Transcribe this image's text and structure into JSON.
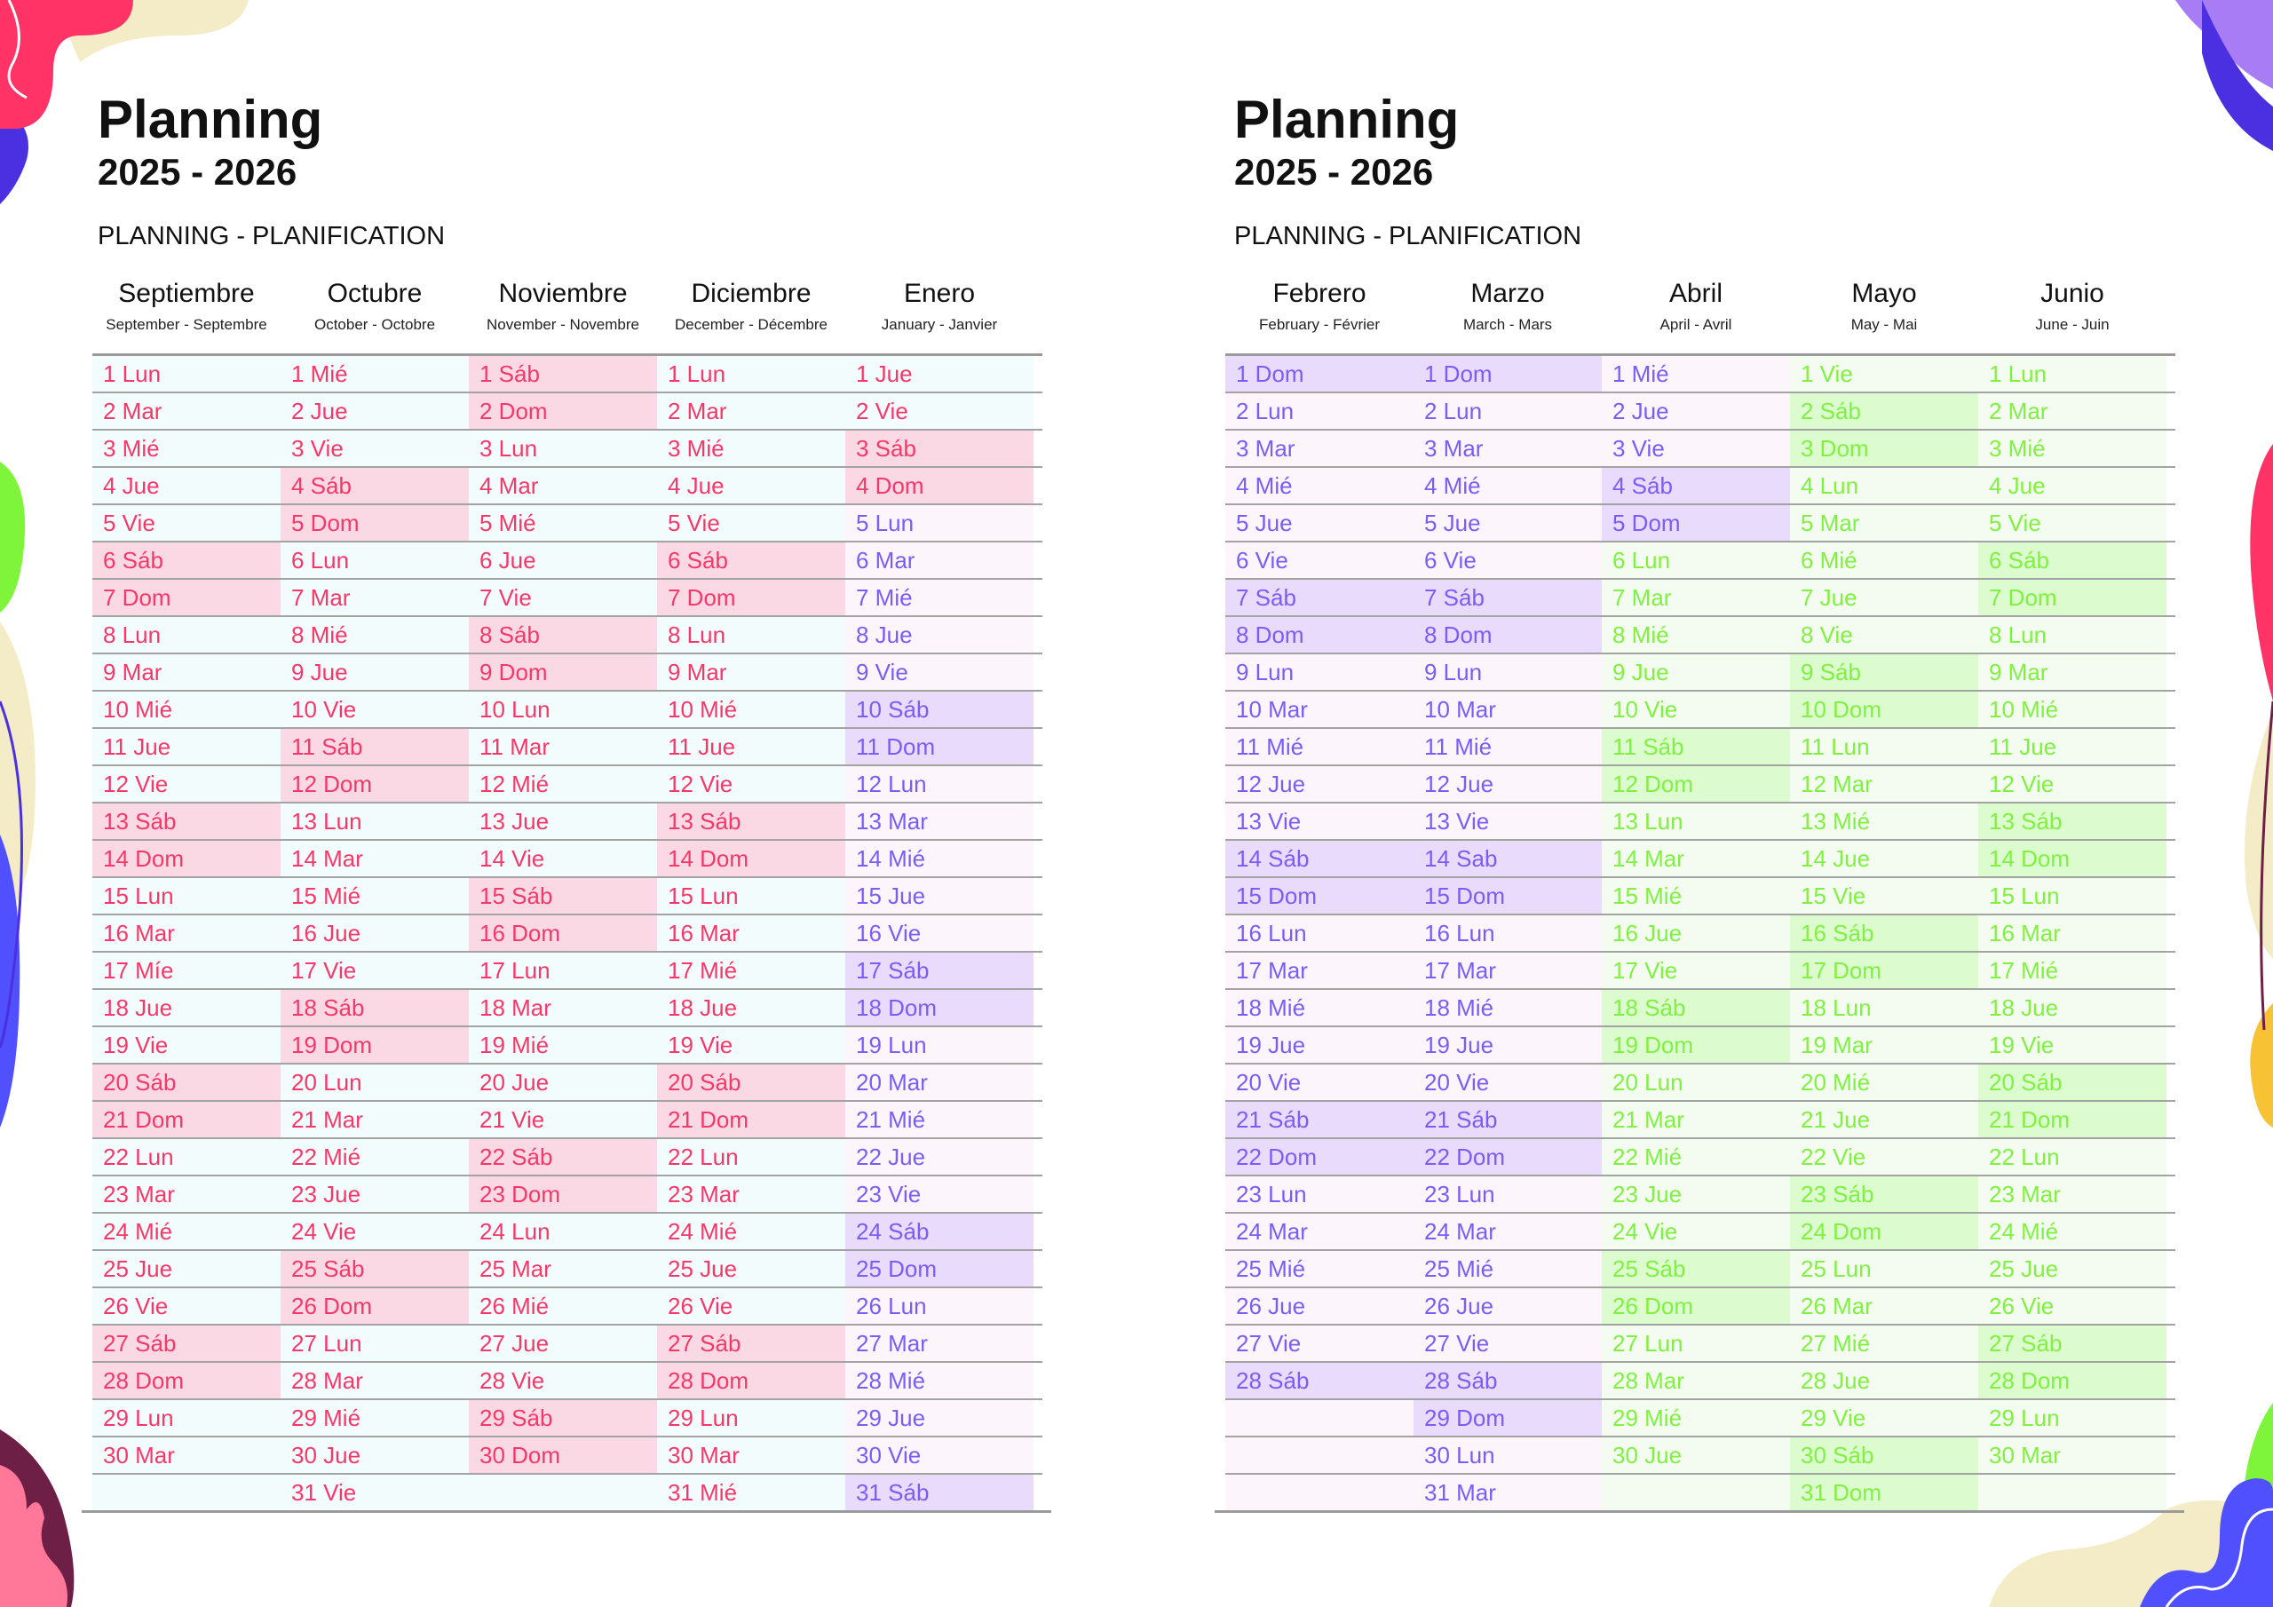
{
  "colors": {
    "pink_text": "#f5386a",
    "purple_text": "#7b5cf5",
    "green_text": "#7ff23f"
  },
  "pages": [
    {
      "title": "Planning",
      "years": "2025 - 2026",
      "subtitle": "PLANNING - PLANIFICATION",
      "months": [
        {
          "name": "Septiembre",
          "sub": "September - Septembre",
          "theme": "pink",
          "days": [
            "1 Lun",
            "2 Mar",
            "3 Mié",
            "4 Jue",
            "5 Vie",
            "6 Sáb",
            "7 Dom",
            "8 Lun",
            "9 Mar",
            "10 Mié",
            "11 Jue",
            "12 Vie",
            "13 Sáb",
            "14 Dom",
            "15 Lun",
            "16 Mar",
            "17 Míe",
            "18 Jue",
            "19 Vie",
            "20 Sáb",
            "21 Dom",
            "22 Lun",
            "23 Mar",
            "24 Mié",
            "25 Jue",
            "26 Vie",
            "27 Sáb",
            "28 Dom",
            "29 Lun",
            "30 Mar"
          ]
        },
        {
          "name": "Octubre",
          "sub": "October - Octobre",
          "theme": "pink",
          "days": [
            "1 Mié",
            "2 Jue",
            "3 Vie",
            "4 Sáb",
            "5 Dom",
            "6 Lun",
            "7 Mar",
            "8 Mié",
            "9 Jue",
            "10 Vie",
            "11 Sáb",
            "12 Dom",
            "13 Lun",
            "14 Mar",
            "15 Mié",
            "16 Jue",
            "17 Vie",
            "18 Sáb",
            "19 Dom",
            "20 Lun",
            "21 Mar",
            "22 Mié",
            "23 Jue",
            "24 Vie",
            "25 Sáb",
            "26 Dom",
            "27 Lun",
            "28 Mar",
            "29 Mié",
            "30 Jue",
            "31 Vie"
          ]
        },
        {
          "name": "Noviembre",
          "sub": "November - Novembre",
          "theme": "pink",
          "days": [
            "1 Sáb",
            "2 Dom",
            "3 Lun",
            "4 Mar",
            "5 Mié",
            "6 Jue",
            "7 Vie",
            "8 Sáb",
            "9 Dom",
            "10 Lun",
            "11 Mar",
            "12 Mié",
            "13 Jue",
            "14 Vie",
            "15 Sáb",
            "16 Dom",
            "17 Lun",
            "18 Mar",
            "19 Mié",
            "20 Jue",
            "21 Vie",
            "22 Sáb",
            "23 Dom",
            "24 Lun",
            "25 Mar",
            "26 Mié",
            "27 Jue",
            "28 Vie",
            "29 Sáb",
            "30 Dom"
          ]
        },
        {
          "name": "Diciembre",
          "sub": "December - Décembre",
          "theme": "pink",
          "days": [
            "1 Lun",
            "2 Mar",
            "3 Mié",
            "4 Jue",
            "5 Vie",
            "6 Sáb",
            "7 Dom",
            "8 Lun",
            "9 Mar",
            "10 Mié",
            "11 Jue",
            "12 Vie",
            "13 Sáb",
            "14 Dom",
            "15 Lun",
            "16 Mar",
            "17 Mié",
            "18 Jue",
            "19 Vie",
            "20 Sáb",
            "21 Dom",
            "22 Lun",
            "23 Mar",
            "24 Mié",
            "25 Jue",
            "26 Vie",
            "27 Sáb",
            "28 Dom",
            "29 Lun",
            "30 Mar",
            "31 Mié"
          ]
        },
        {
          "name": "Enero",
          "sub": "January - Janvier",
          "theme": "pink",
          "theme_switch_day": 5,
          "theme_after": "purple",
          "days": [
            "1 Jue",
            "2 Vie",
            "3 Sáb",
            "4 Dom",
            "5 Lun",
            "6 Mar",
            "7 Mié",
            "8 Jue",
            "9 Vie",
            "10 Sáb",
            "11 Dom",
            "12 Lun",
            "13 Mar",
            "14 Mié",
            "15 Jue",
            "16 Vie",
            "17 Sáb",
            "18 Dom",
            "19 Lun",
            "20 Mar",
            "21 Mié",
            "22 Jue",
            "23 Vie",
            "24 Sáb",
            "25 Dom",
            "26 Lun",
            "27 Mar",
            "28 Mié",
            "29 Jue",
            "30 Vie",
            "31 Sáb"
          ]
        }
      ]
    },
    {
      "title": "Planning",
      "years": "2025 - 2026",
      "subtitle": "PLANNING - PLANIFICATION",
      "months": [
        {
          "name": "Febrero",
          "sub": "February - Février",
          "theme": "purple",
          "days": [
            "1 Dom",
            "2 Lun",
            "3 Mar",
            "4 Mié",
            "5 Jue",
            "6 Vie",
            "7 Sáb",
            "8 Dom",
            "9 Lun",
            "10 Mar",
            "11 Mié",
            "12 Jue",
            "13 Vie",
            "14 Sáb",
            "15 Dom",
            "16 Lun",
            "17 Mar",
            "18 Mié",
            "19 Jue",
            "20 Vie",
            "21 Sáb",
            "22 Dom",
            "23 Lun",
            "24 Mar",
            "25 Mié",
            "26 Jue",
            "27 Vie",
            "28 Sáb"
          ]
        },
        {
          "name": "Marzo",
          "sub": "March - Mars",
          "theme": "purple",
          "days": [
            "1 Dom",
            "2 Lun",
            "3 Mar",
            "4 Mié",
            "5 Jue",
            "6 Vie",
            "7 Sáb",
            "8 Dom",
            "9 Lun",
            "10 Mar",
            "11 Mié",
            "12 Jue",
            "13 Vie",
            "14 Sab",
            "15 Dom",
            "16 Lun",
            "17 Mar",
            "18 Mié",
            "19 Jue",
            "20 Vie",
            "21 Sáb",
            "22 Dom",
            "23 Lun",
            "24 Mar",
            "25 Mié",
            "26 Jue",
            "27 Vie",
            "28 Sáb",
            "29 Dom",
            "30 Lun",
            "31 Mar"
          ]
        },
        {
          "name": "Abril",
          "sub": "April - Avril",
          "theme": "purple",
          "theme_switch_day": 6,
          "theme_after": "green",
          "days": [
            "1 Mié",
            "2 Jue",
            "3 Vie",
            "4 Sáb",
            "5 Dom",
            "6 Lun",
            "7 Mar",
            "8 Mié",
            "9 Jue",
            "10 Vie",
            "11 Sáb",
            "12 Dom",
            "13 Lun",
            "14 Mar",
            "15 Mié",
            "16 Jue",
            "17 Vie",
            "18 Sáb",
            "19 Dom",
            "20 Lun",
            "21 Mar",
            "22 Mié",
            "23 Jue",
            "24 Vie",
            "25 Sáb",
            "26 Dom",
            "27 Lun",
            "28 Mar",
            "29 Mié",
            "30 Jue"
          ]
        },
        {
          "name": "Mayo",
          "sub": "May - Mai",
          "theme": "green",
          "days": [
            "1 Vie",
            "2 Sáb",
            "3 Dom",
            "4 Lun",
            "5 Mar",
            "6 Mié",
            "7 Jue",
            "8 Vie",
            "9 Sáb",
            "10 Dom",
            "11 Lun",
            "12 Mar",
            "13 Mié",
            "14 Jue",
            "15 Vie",
            "16 Sáb",
            "17 Dom",
            "18 Lun",
            "19 Mar",
            "20 Mié",
            "21 Jue",
            "22 Vie",
            "23 Sáb",
            "24 Dom",
            "25 Lun",
            "26 Mar",
            "27 Mié",
            "28 Jue",
            "29 Vie",
            "30 Sáb",
            "31 Dom"
          ]
        },
        {
          "name": "Junio",
          "sub": "June - Juin",
          "theme": "green",
          "days": [
            "1 Lun",
            "2 Mar",
            "3 Mié",
            "4 Jue",
            "5 Vie",
            "6 Sáb",
            "7 Dom",
            "8 Lun",
            "9 Mar",
            "10 Mié",
            "11 Jue",
            "12 Vie",
            "13 Sáb",
            "14 Dom",
            "15 Lun",
            "16 Mar",
            "17 Mié",
            "18 Jue",
            "19 Vie",
            "20 Sáb",
            "21 Dom",
            "22 Lun",
            "23 Mar",
            "24 Mié",
            "25 Jue",
            "26 Vie",
            "27 Sáb",
            "28 Dom",
            "29 Lun",
            "30 Mar"
          ]
        }
      ]
    }
  ]
}
